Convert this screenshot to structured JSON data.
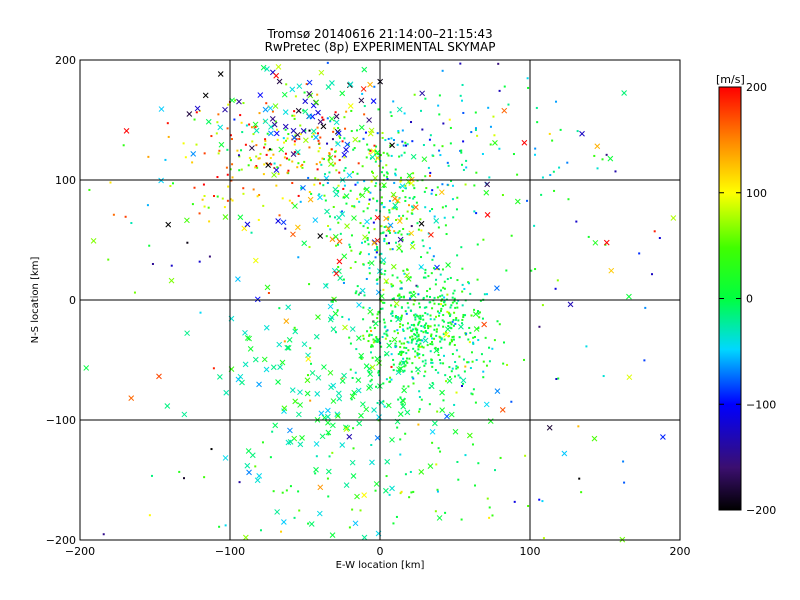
{
  "chart_data": {
    "type": "scatter",
    "title": "Tromsø 20140616 21:14:00–21:15:43",
    "subtitle": "RwPretec (8p) EXPERIMENTAL SKYMAP",
    "xlabel": "E-W location [km]",
    "ylabel": "N-S location [km]",
    "xlim": [
      -200,
      200
    ],
    "ylim": [
      -200,
      200
    ],
    "xticks": [
      -200,
      -100,
      0,
      100,
      200
    ],
    "yticks": [
      -200,
      -100,
      0,
      100,
      200
    ],
    "gridlines_x": [
      -100,
      0,
      100
    ],
    "gridlines_y": [
      -100,
      0,
      100
    ],
    "colorbar": {
      "label": "[m/s]",
      "min": -200,
      "max": 200,
      "ticks": [
        200,
        100,
        0,
        -100,
        -200
      ]
    },
    "series": [
      {
        "marker": "dot",
        "clusters": [
          {
            "cx": 25,
            "cy": -25,
            "sx": 22,
            "sy": 25,
            "n": 520,
            "v": 5,
            "vs": 30
          },
          {
            "cx": 5,
            "cy": 75,
            "sx": 22,
            "sy": 35,
            "n": 260,
            "v": 10,
            "vs": 50
          },
          {
            "cx": -60,
            "cy": 130,
            "sx": 35,
            "sy": 20,
            "n": 160,
            "v": 110,
            "vs": 70
          },
          {
            "cx": 50,
            "cy": 130,
            "sx": 45,
            "sy": 28,
            "n": 120,
            "v": -30,
            "vs": 60
          },
          {
            "cx": -95,
            "cy": 105,
            "sx": 25,
            "sy": 20,
            "n": 60,
            "v": 110,
            "vs": 50
          },
          {
            "cx": 10,
            "cy": -160,
            "sx": 60,
            "sy": 30,
            "n": 70,
            "v": 20,
            "vs": 40
          },
          {
            "cx": 0,
            "cy": 0,
            "sx": 110,
            "sy": 110,
            "n": 160,
            "v": 0,
            "vs": 110
          }
        ]
      },
      {
        "marker": "x",
        "clusters": [
          {
            "cx": -30,
            "cy": -80,
            "sx": 40,
            "sy": 50,
            "n": 170,
            "v": -10,
            "vs": 25
          },
          {
            "cx": -55,
            "cy": 150,
            "sx": 30,
            "sy": 25,
            "n": 90,
            "v": -70,
            "vs": 110
          },
          {
            "cx": 0,
            "cy": 70,
            "sx": 30,
            "sy": 40,
            "n": 70,
            "v": 30,
            "vs": 90
          },
          {
            "cx": 0,
            "cy": 0,
            "sx": 120,
            "sy": 120,
            "n": 110,
            "v": 20,
            "vs": 110
          }
        ]
      }
    ]
  }
}
